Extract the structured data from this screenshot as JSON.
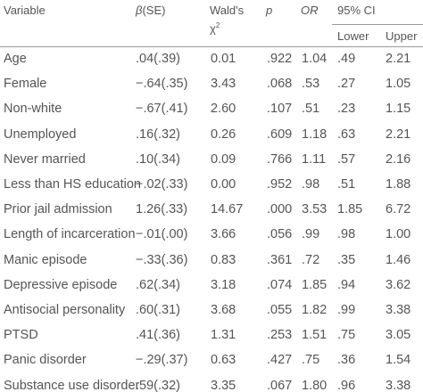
{
  "header": {
    "variable": "Variable",
    "beta_symbol": "β",
    "beta_rest": "(SE)",
    "wald_line1": "Wald's",
    "wald_symbol": "χ",
    "wald_sup": "2",
    "p": "p",
    "or": "OR",
    "ci": "95% CI",
    "lower": "Lower",
    "upper": "Upper"
  },
  "table": {
    "rows": [
      [
        "Age",
        ".04(.39)",
        "0.01",
        ".922",
        "1.04",
        ".49",
        "2.21"
      ],
      [
        "Female",
        "−.64(.35)",
        "3.43",
        ".068",
        ".53",
        ".27",
        "1.05"
      ],
      [
        "Non-white",
        "−.67(.41)",
        "2.60",
        ".107",
        ".51",
        ".23",
        "1.15"
      ],
      [
        "Unemployed",
        ".16(.32)",
        "0.26",
        ".609",
        "1.18",
        ".63",
        "2.21"
      ],
      [
        "Never married",
        ".10(.34)",
        "0.09",
        ".766",
        "1.11",
        ".57",
        "2.16"
      ],
      [
        "Less than HS education",
        "−.02(.33)",
        "0.00",
        ".952",
        ".98",
        ".51",
        "1.88"
      ],
      [
        "Prior jail admission",
        "1.26(.33)",
        "14.67",
        ".000",
        "3.53",
        "1.85",
        "6.72"
      ],
      [
        "Length of incarceration",
        "−.01(.00)",
        "3.66",
        ".056",
        ".99",
        ".98",
        "1.00"
      ],
      [
        "Manic episode",
        "−.33(.36)",
        "0.83",
        ".361",
        ".72",
        ".35",
        "1.46"
      ],
      [
        "Depressive episode",
        ".62(.34)",
        "3.18",
        ".074",
        "1.85",
        ".94",
        "3.62"
      ],
      [
        "Antisocial personality",
        ".60(.31)",
        "3.68",
        ".055",
        "1.82",
        ".99",
        "3.38"
      ],
      [
        "PTSD",
        ".41(.36)",
        "1.31",
        ".253",
        "1.51",
        ".75",
        "3.05"
      ],
      [
        "Panic disorder",
        "−.29(.37)",
        "0.63",
        ".427",
        ".75",
        ".36",
        "1.54"
      ],
      [
        "Substance use disorder",
        ".59(.32)",
        "3.35",
        ".067",
        "1.80",
        ".96",
        "3.38"
      ]
    ]
  }
}
